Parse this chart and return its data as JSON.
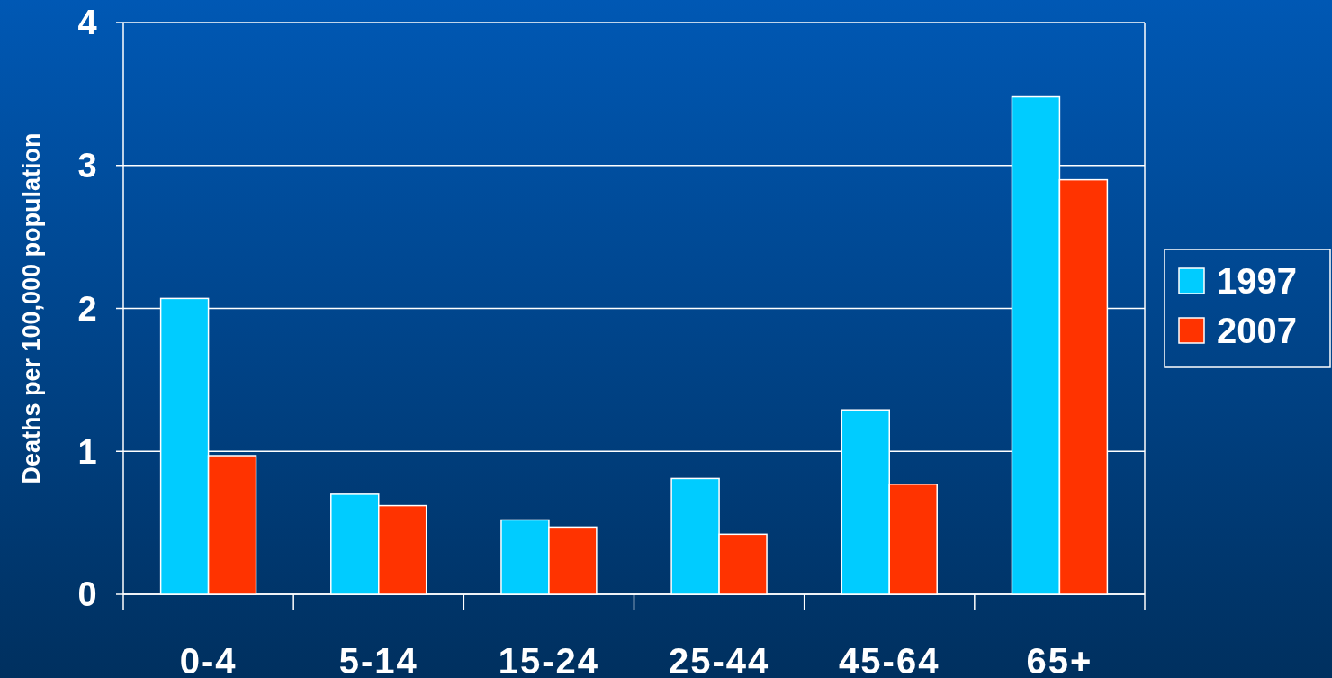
{
  "chart_data": {
    "type": "bar",
    "ylabel": "Deaths per 100,000 population",
    "categories": [
      "0-4",
      "5-14",
      "15-24",
      "25-44",
      "45-64",
      "65+"
    ],
    "series": [
      {
        "name": "1997",
        "color": "#00ccff",
        "values": [
          2.07,
          0.7,
          0.52,
          0.81,
          1.29,
          3.48
        ]
      },
      {
        "name": "2007",
        "color": "#ff3300",
        "values": [
          0.97,
          0.62,
          0.47,
          0.42,
          0.77,
          2.9
        ]
      }
    ],
    "ylim": [
      0,
      4
    ],
    "yticks": [
      0,
      1,
      2,
      3,
      4
    ],
    "grid": "y",
    "legend": "right"
  }
}
